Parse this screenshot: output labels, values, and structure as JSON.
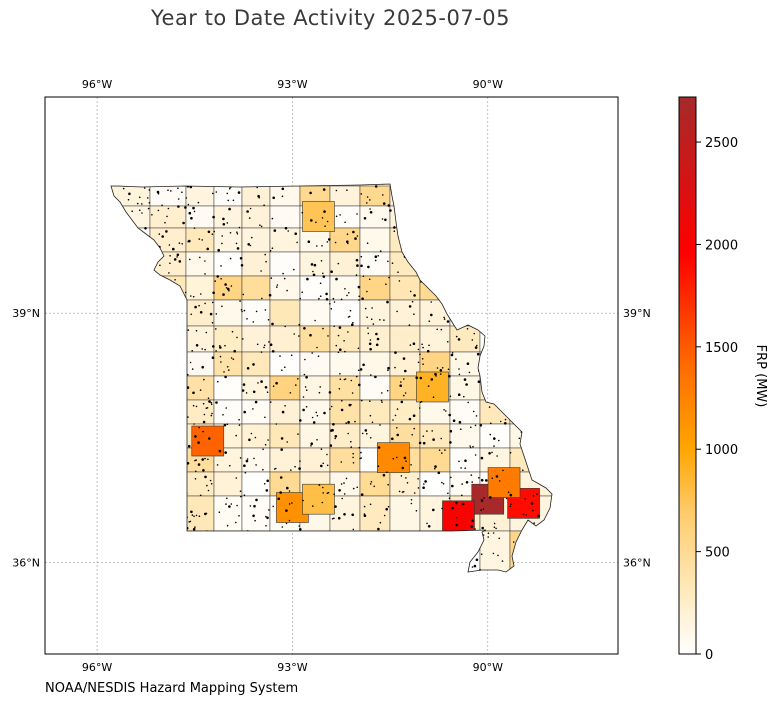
{
  "title": "Year to Date Activity 2025-07-05",
  "footer": "NOAA/NESDIS Hazard Mapping System",
  "chart_data": {
    "type": "heatmap",
    "title": "Year to Date Activity 2025-07-05",
    "region": "Missouri counties",
    "map_extent": {
      "lon": [
        -96.8,
        -88.0
      ],
      "lat": [
        34.9,
        41.6
      ]
    },
    "lon_ticks": [
      "96°W",
      "93°W",
      "90°W"
    ],
    "lon_tick_values": [
      -96,
      -93,
      -90
    ],
    "lat_ticks": [
      "39°N",
      "36°N"
    ],
    "lat_tick_values": [
      39,
      36
    ],
    "grid": true,
    "colorbar": {
      "label": "FRP (MW)",
      "min": 0,
      "max": 2720,
      "ticks": [
        0,
        500,
        1000,
        1500,
        2000,
        2500
      ],
      "colors": [
        "#ffffff",
        "#ffe8b8",
        "#ffcc6e",
        "#ffa500",
        "#ff6a00",
        "#ff0000",
        "#a52a2a"
      ]
    },
    "notable_counties_frp": [
      {
        "lon": -90.0,
        "lat": 36.75,
        "value": 2700
      },
      {
        "lon": -90.45,
        "lat": 36.55,
        "value": 2000
      },
      {
        "lon": -89.45,
        "lat": 36.7,
        "value": 1900
      },
      {
        "lon": -89.75,
        "lat": 36.95,
        "value": 1300
      },
      {
        "lon": -94.3,
        "lat": 37.45,
        "value": 1450
      },
      {
        "lon": -91.45,
        "lat": 37.25,
        "value": 1200
      },
      {
        "lon": -93.0,
        "lat": 36.65,
        "value": 1150
      },
      {
        "lon": -90.85,
        "lat": 38.1,
        "value": 900
      },
      {
        "lon": -92.6,
        "lat": 36.75,
        "value": 800
      },
      {
        "lon": -92.6,
        "lat": 40.15,
        "value": 750
      }
    ]
  }
}
